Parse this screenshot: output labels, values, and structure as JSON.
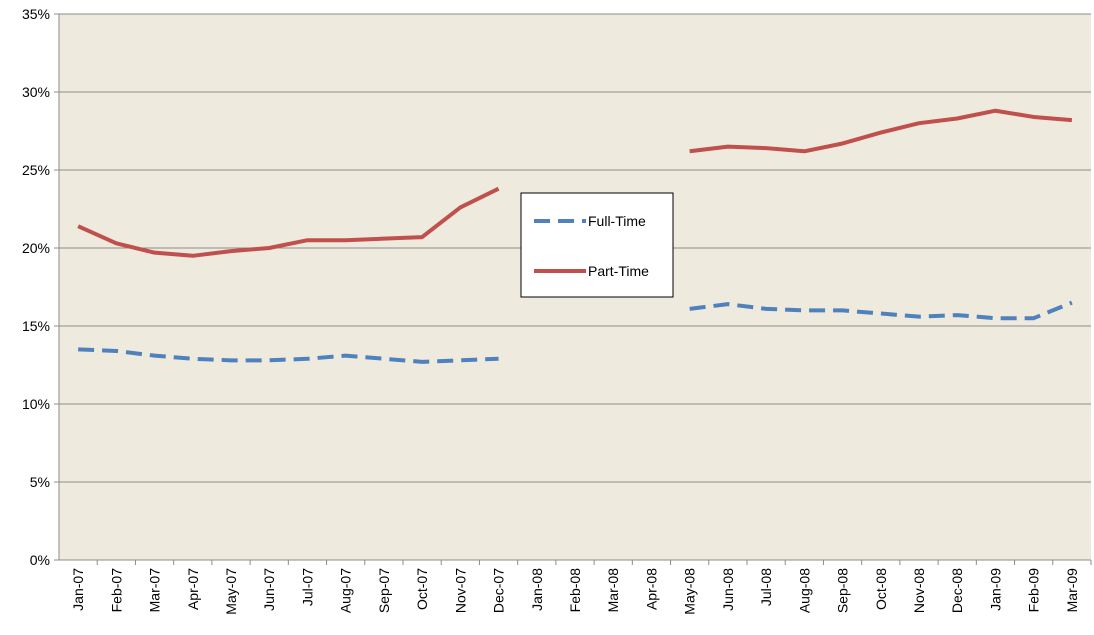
{
  "chart_data": {
    "type": "line",
    "categories": [
      "Jan-07",
      "Feb-07",
      "Mar-07",
      "Apr-07",
      "May-07",
      "Jun-07",
      "Jul-07",
      "Aug-07",
      "Sep-07",
      "Oct-07",
      "Nov-07",
      "Dec-07",
      "Jan-08",
      "Feb-08",
      "Mar-08",
      "Apr-08",
      "May-08",
      "Jun-08",
      "Jul-08",
      "Aug-08",
      "Sep-08",
      "Oct-08",
      "Nov-08",
      "Dec-08",
      "Jan-09",
      "Feb-09",
      "Mar-09"
    ],
    "series": [
      {
        "name": "Full-Time",
        "color": "#4f81bd",
        "dashed": true,
        "values": [
          13.5,
          13.4,
          13.1,
          12.9,
          12.8,
          12.8,
          12.9,
          13.1,
          12.9,
          12.7,
          12.8,
          12.9,
          null,
          null,
          null,
          null,
          16.1,
          16.4,
          16.1,
          16.0,
          16.0,
          15.8,
          15.6,
          15.7,
          15.5,
          15.5,
          16.5
        ]
      },
      {
        "name": "Part-Time",
        "color": "#c0504d",
        "dashed": false,
        "values": [
          21.4,
          20.3,
          19.7,
          19.5,
          19.8,
          20.0,
          20.5,
          20.5,
          20.6,
          20.7,
          22.6,
          23.8,
          null,
          null,
          null,
          null,
          26.2,
          26.5,
          26.4,
          26.2,
          26.7,
          27.4,
          28.0,
          28.3,
          28.8,
          28.4,
          28.2
        ]
      }
    ],
    "ylim": [
      0,
      35
    ],
    "yticks": [
      {
        "value": 0,
        "label": "0%"
      },
      {
        "value": 5,
        "label": "5%"
      },
      {
        "value": 10,
        "label": "10%"
      },
      {
        "value": 15,
        "label": "15%"
      },
      {
        "value": 20,
        "label": "20%"
      },
      {
        "value": 25,
        "label": "25%"
      },
      {
        "value": 30,
        "label": "30%"
      },
      {
        "value": 35,
        "label": "35%"
      }
    ],
    "grid": true,
    "background": "#eeeadd"
  }
}
